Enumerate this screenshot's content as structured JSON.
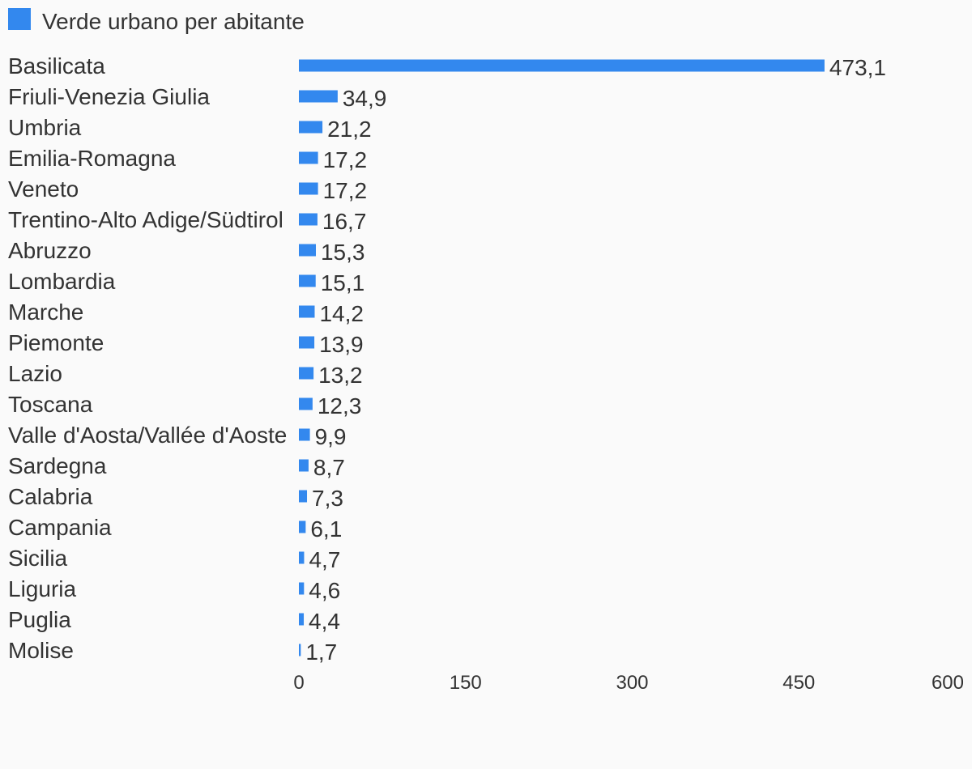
{
  "legend": {
    "label": "Verde urbano per abitante",
    "color": "#3388ee"
  },
  "chart_data": {
    "type": "bar",
    "orientation": "horizontal",
    "title": "",
    "xlabel": "",
    "ylabel": "",
    "xlim": [
      0,
      600
    ],
    "xticks": [
      0,
      150,
      300,
      450,
      600
    ],
    "grid": false,
    "legend_position": "top-left",
    "decimal_separator": ",",
    "categories": [
      "Basilicata",
      "Friuli-Venezia Giulia",
      "Umbria",
      "Emilia-Romagna",
      "Veneto",
      "Trentino-Alto Adige/Südtirol",
      "Abruzzo",
      "Lombardia",
      "Marche",
      "Piemonte",
      "Lazio",
      "Toscana",
      "Valle d'Aosta/Vallée d'Aoste",
      "Sardegna",
      "Calabria",
      "Campania",
      "Sicilia",
      "Liguria",
      "Puglia",
      "Molise"
    ],
    "series": [
      {
        "name": "Verde urbano per abitante",
        "color": "#3388ee",
        "values": [
          473.1,
          34.9,
          21.2,
          17.2,
          17.2,
          16.7,
          15.3,
          15.1,
          14.2,
          13.9,
          13.2,
          12.3,
          9.9,
          8.7,
          7.3,
          6.1,
          4.7,
          4.6,
          4.4,
          1.7
        ]
      }
    ]
  }
}
